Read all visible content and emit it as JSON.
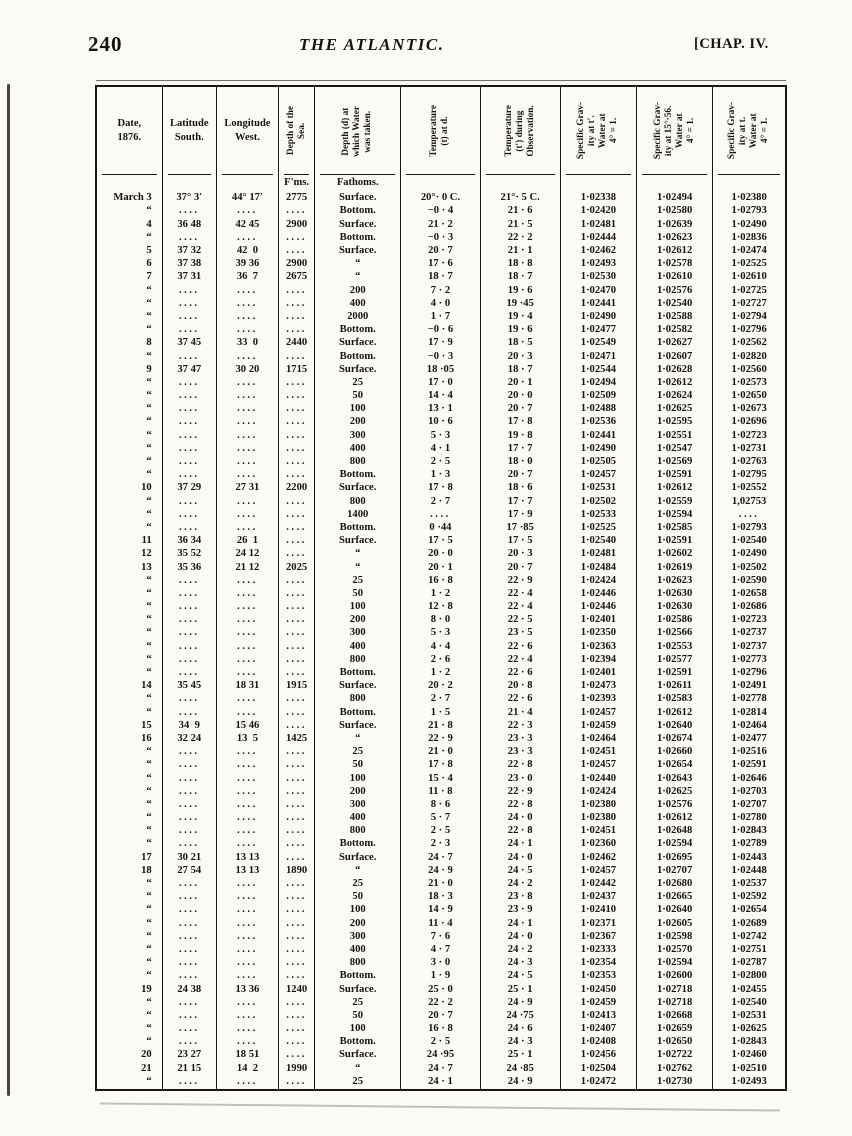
{
  "page": {
    "page_number": "240",
    "running_title": "THE ATLANTIC.",
    "chapter": "[CHAP. IV."
  },
  "table": {
    "columns": [
      {
        "label": "Date,\n1876."
      },
      {
        "label": "Latitude\nSouth."
      },
      {
        "label": "Longitude\nWest."
      },
      {
        "label": "Depth of the\nSea."
      },
      {
        "label": "Depth (d) at\nwhich Water\nwas taken."
      },
      {
        "label": "Temperature\n(t) at d."
      },
      {
        "label": "Temperature\n(t′) during\nObservation."
      },
      {
        "label": "Specific Grav-\nity at t′.\nWater at\n4° = 1."
      },
      {
        "label": "Specific Grav-\nity at 15°·56.\nWater at\n4° = 1."
      },
      {
        "label": "Specific Grav-\nity at t.\nWater at\n4° = 1."
      }
    ],
    "subheader": {
      "fms": "F'ms.",
      "fathoms": "Fathoms."
    },
    "rows": [
      [
        "March 3",
        "37° 3′",
        "44° 17′",
        "2775",
        "Surface.",
        "20°· 0 C.",
        "21°· 5 C.",
        "1·02338",
        "1·02494",
        "1·02380"
      ],
      [
        "“",
        "....",
        "....",
        "....",
        "Bottom.",
        "−0 · 4",
        "21 · 6",
        "1·02420",
        "1·02580",
        "1·02793"
      ],
      [
        "4",
        "36 48",
        "42 45",
        "2900",
        "Surface.",
        "21 · 2",
        "21 · 5",
        "1·02481",
        "1·02639",
        "1·02490"
      ],
      [
        "“",
        "....",
        "....",
        "....",
        "Bottom.",
        "−0 · 3",
        "22 · 2",
        "1·02444",
        "1·02623",
        "1·02836"
      ],
      [
        "5",
        "37 32",
        "42  0",
        "....",
        "Surface.",
        "20 · 7",
        "21 · 1",
        "1·02462",
        "1·02612",
        "1·02474"
      ],
      [
        "6",
        "37 38",
        "39 36",
        "2900",
        "“",
        "17 · 6",
        "18 · 8",
        "1·02493",
        "1·02578",
        "1·02525"
      ],
      [
        "7",
        "37 31",
        "36  7",
        "2675",
        "“",
        "18 · 7",
        "18 · 7",
        "1·02530",
        "1·02610",
        "1·02610"
      ],
      [
        "“",
        "....",
        "....",
        "....",
        "200",
        "7 · 2",
        "19 · 6",
        "1·02470",
        "1·02576",
        "1·02725"
      ],
      [
        "“",
        "....",
        "....",
        "....",
        "400",
        "4 · 0",
        "19 ·45",
        "1·02441",
        "1·02540",
        "1·02727"
      ],
      [
        "“",
        "....",
        "....",
        "....",
        "2000",
        "1 · 7",
        "19 · 4",
        "1·02490",
        "1·02588",
        "1·02794"
      ],
      [
        "“",
        "....",
        "....",
        "....",
        "Bottom.",
        "−0 · 6",
        "19 · 6",
        "1·02477",
        "1·02582",
        "1·02796"
      ],
      [
        "8",
        "37 45",
        "33  0",
        "2440",
        "Surface.",
        "17 · 9",
        "18 · 5",
        "1·02549",
        "1·02627",
        "1·02562"
      ],
      [
        "“",
        "....",
        "....",
        "....",
        "Bottom.",
        "−0 · 3",
        "20 · 3",
        "1·02471",
        "1·02607",
        "1·02820"
      ],
      [
        "9",
        "37 47",
        "30 20",
        "1715",
        "Surface.",
        "18 ·05",
        "18 · 7",
        "1·02544",
        "1·02628",
        "1·02560"
      ],
      [
        "“",
        "....",
        "....",
        "....",
        "25",
        "17 · 0",
        "20 · 1",
        "1·02494",
        "1·02612",
        "1·02573"
      ],
      [
        "“",
        "....",
        "....",
        "....",
        "50",
        "14 · 4",
        "20 · 0",
        "1·02509",
        "1·02624",
        "1·02650"
      ],
      [
        "“",
        "....",
        "....",
        "....",
        "100",
        "13 · 1",
        "20 · 7",
        "1·02488",
        "1·02625",
        "1·02673"
      ],
      [
        "“",
        "....",
        "....",
        "....",
        "200",
        "10 · 6",
        "17 · 8",
        "1·02536",
        "1·02595",
        "1·02696"
      ],
      [
        "“",
        "....",
        "....",
        "....",
        "300",
        "5 · 3",
        "19 · 8",
        "1·02441",
        "1·02551",
        "1·02723"
      ],
      [
        "“",
        "....",
        "....",
        "....",
        "400",
        "4 · 1",
        "17 · 7",
        "1·02490",
        "1·02547",
        "1·02731"
      ],
      [
        "“",
        "....",
        "....",
        "....",
        "800",
        "2 · 5",
        "18 · 0",
        "1·02505",
        "1·02569",
        "1·02763"
      ],
      [
        "“",
        "....",
        "....",
        "....",
        "Bottom.",
        "1 · 3",
        "20 · 7",
        "1·02457",
        "1·02591",
        "1·02795"
      ],
      [
        "10",
        "37 29",
        "27 31",
        "2200",
        "Surface.",
        "17 · 8",
        "18 · 6",
        "1·02531",
        "1·02612",
        "1·02552"
      ],
      [
        "“",
        "....",
        "....",
        "....",
        "800",
        "2 · 7",
        "17 · 7",
        "1·02502",
        "1·02559",
        "1,02753"
      ],
      [
        "“",
        "....",
        "....",
        "....",
        "1400",
        "....",
        "17 · 9",
        "1·02533",
        "1·02594",
        "...."
      ],
      [
        "“",
        "....",
        "....",
        "....",
        "Bottom.",
        "0 ·44",
        "17 ·85",
        "1·02525",
        "1·02585",
        "1·02793"
      ],
      [
        "11",
        "36 34",
        "26  1",
        "....",
        "Surface.",
        "17 · 5",
        "17 · 5",
        "1·02540",
        "1·02591",
        "1·02540"
      ],
      [
        "12",
        "35 52",
        "24 12",
        "....",
        "“",
        "20 · 0",
        "20 · 3",
        "1·02481",
        "1·02602",
        "1·02490"
      ],
      [
        "13",
        "35 36",
        "21 12",
        "2025",
        "“",
        "20 · 1",
        "20 · 7",
        "1·02484",
        "1·02619",
        "1·02502"
      ],
      [
        "“",
        "....",
        "....",
        "....",
        "25",
        "16 · 8",
        "22 · 9",
        "1·02424",
        "1·02623",
        "1·02590"
      ],
      [
        "“",
        "....",
        "....",
        "....",
        "50",
        "1 · 2",
        "22 · 4",
        "1·02446",
        "1·02630",
        "1·02658"
      ],
      [
        "“",
        "....",
        "....",
        "....",
        "100",
        "12 · 8",
        "22 · 4",
        "1·02446",
        "1·02630",
        "1·02686"
      ],
      [
        "“",
        "....",
        "....",
        "....",
        "200",
        "8 · 0",
        "22 · 5",
        "1·02401",
        "1·02586",
        "1·02723"
      ],
      [
        "“",
        "....",
        "....",
        "....",
        "300",
        "5 · 3",
        "23 · 5",
        "1·02350",
        "1·02566",
        "1·02737"
      ],
      [
        "“",
        "....",
        "....",
        "....",
        "400",
        "4 · 4",
        "22 · 6",
        "1·02363",
        "1·02553",
        "1·02737"
      ],
      [
        "“",
        "....",
        "....",
        "....",
        "800",
        "2 · 6",
        "22 · 4",
        "1·02394",
        "1·02577",
        "1·02773"
      ],
      [
        "“",
        "....",
        "....",
        "....",
        "Bottom.",
        "1 · 2",
        "22 · 6",
        "1·02401",
        "1·02591",
        "1·02796"
      ],
      [
        "14",
        "35 45",
        "18 31",
        "1915",
        "Surface.",
        "20 · 2",
        "20 · 8",
        "1·02473",
        "1·02611",
        "1·02491"
      ],
      [
        "“",
        "....",
        "....",
        "....",
        "800",
        "2 · 7",
        "22 · 6",
        "1·02393",
        "1·02583",
        "1·02778"
      ],
      [
        "“",
        "....",
        "....",
        "....",
        "Bottom.",
        "1 · 5",
        "21 · 4",
        "1·02457",
        "1·02612",
        "1·02814"
      ],
      [
        "15",
        "34  9",
        "15 46",
        "....",
        "Surface.",
        "21 · 8",
        "22 · 3",
        "1·02459",
        "1·02640",
        "1·02464"
      ],
      [
        "16",
        "32 24",
        "13  5",
        "1425",
        "“",
        "22 · 9",
        "23 · 3",
        "1·02464",
        "1·02674",
        "1·02477"
      ],
      [
        "“",
        "....",
        "....",
        "....",
        "25",
        "21 · 0",
        "23 · 3",
        "1·02451",
        "1·02660",
        "1·02516"
      ],
      [
        "“",
        "....",
        "....",
        "....",
        "50",
        "17 · 8",
        "22 · 8",
        "1·02457",
        "1·02654",
        "1·02591"
      ],
      [
        "“",
        "....",
        "....",
        "....",
        "100",
        "15 · 4",
        "23 · 0",
        "1·02440",
        "1·02643",
        "1·02646"
      ],
      [
        "“",
        "....",
        "....",
        "....",
        "200",
        "11 · 8",
        "22 · 9",
        "1·02424",
        "1·02625",
        "1·02703"
      ],
      [
        "“",
        "....",
        "....",
        "....",
        "300",
        "8 · 6",
        "22 · 8",
        "1·02380",
        "1·02576",
        "1·02707"
      ],
      [
        "“",
        "....",
        "....",
        "....",
        "400",
        "5 · 7",
        "24 · 0",
        "1·02380",
        "1·02612",
        "1·02780"
      ],
      [
        "“",
        "....",
        "....",
        "....",
        "800",
        "2 · 5",
        "22 · 8",
        "1·02451",
        "1·02648",
        "1·02843"
      ],
      [
        "“",
        "....",
        "....",
        "....",
        "Bottom.",
        "2 · 3",
        "24 · 1",
        "1·02360",
        "1·02594",
        "1·02789"
      ],
      [
        "17",
        "30 21",
        "13 13",
        "....",
        "Surface.",
        "24 · 7",
        "24 · 0",
        "1·02462",
        "1·02695",
        "1·02443"
      ],
      [
        "18",
        "27 54",
        "13 13",
        "1890",
        "“",
        "24 · 9",
        "24 · 5",
        "1·02457",
        "1·02707",
        "1·02448"
      ],
      [
        "“",
        "....",
        "....",
        "....",
        "25",
        "21 · 0",
        "24 · 2",
        "1·02442",
        "1·02680",
        "1·02537"
      ],
      [
        "“",
        "....",
        "....",
        "....",
        "50",
        "18 · 3",
        "23 · 8",
        "1·02437",
        "1·02665",
        "1·02592"
      ],
      [
        "“",
        "....",
        "....",
        "....",
        "100",
        "14 · 9",
        "23 · 9",
        "1·02410",
        "1·02640",
        "1·02654"
      ],
      [
        "“",
        "....",
        "....",
        "....",
        "200",
        "11 · 4",
        "24 · 1",
        "1·02371",
        "1·02605",
        "1·02689"
      ],
      [
        "“",
        "....",
        "....",
        "....",
        "300",
        "7 · 6",
        "24 · 0",
        "1·02367",
        "1·02598",
        "1·02742"
      ],
      [
        "“",
        "....",
        "....",
        "....",
        "400",
        "4 · 7",
        "24 · 2",
        "1·02333",
        "1·02570",
        "1·02751"
      ],
      [
        "“",
        "....",
        "....",
        "....",
        "800",
        "3 · 0",
        "24 · 3",
        "1·02354",
        "1·02594",
        "1·02787"
      ],
      [
        "“",
        "....",
        "....",
        "....",
        "Bottom.",
        "1 · 9",
        "24 · 5",
        "1·02353",
        "1·02600",
        "1·02800"
      ],
      [
        "19",
        "24 38",
        "13 36",
        "1240",
        "Surface.",
        "25 · 0",
        "25 · 1",
        "1·02450",
        "1·02718",
        "1·02455"
      ],
      [
        "“",
        "....",
        "....",
        "....",
        "25",
        "22 · 2",
        "24 · 9",
        "1·02459",
        "1·02718",
        "1·02540"
      ],
      [
        "“",
        "....",
        "....",
        "....",
        "50",
        "20 · 7",
        "24 ·75",
        "1·02413",
        "1·02668",
        "1·02531"
      ],
      [
        "“",
        "....",
        "....",
        "....",
        "100",
        "16 · 8",
        "24 · 6",
        "1·02407",
        "1·02659",
        "1·02625"
      ],
      [
        "“",
        "....",
        "....",
        "....",
        "Bottom.",
        "2 · 5",
        "24 · 3",
        "1·02408",
        "1·02650",
        "1·02843"
      ],
      [
        "20",
        "23 27",
        "18 51",
        "....",
        "Surface.",
        "24 ·95",
        "25 · 1",
        "1·02456",
        "1·02722",
        "1·02460"
      ],
      [
        "21",
        "21 15",
        "14  2",
        "1990",
        "“",
        "24 · 7",
        "24 ·85",
        "1·02504",
        "1·02762",
        "1·02510"
      ],
      [
        "“",
        "....",
        "....",
        "....",
        "25",
        "24 · 1",
        "24 · 9",
        "1·02472",
        "1·02730",
        "1·02493"
      ]
    ]
  }
}
